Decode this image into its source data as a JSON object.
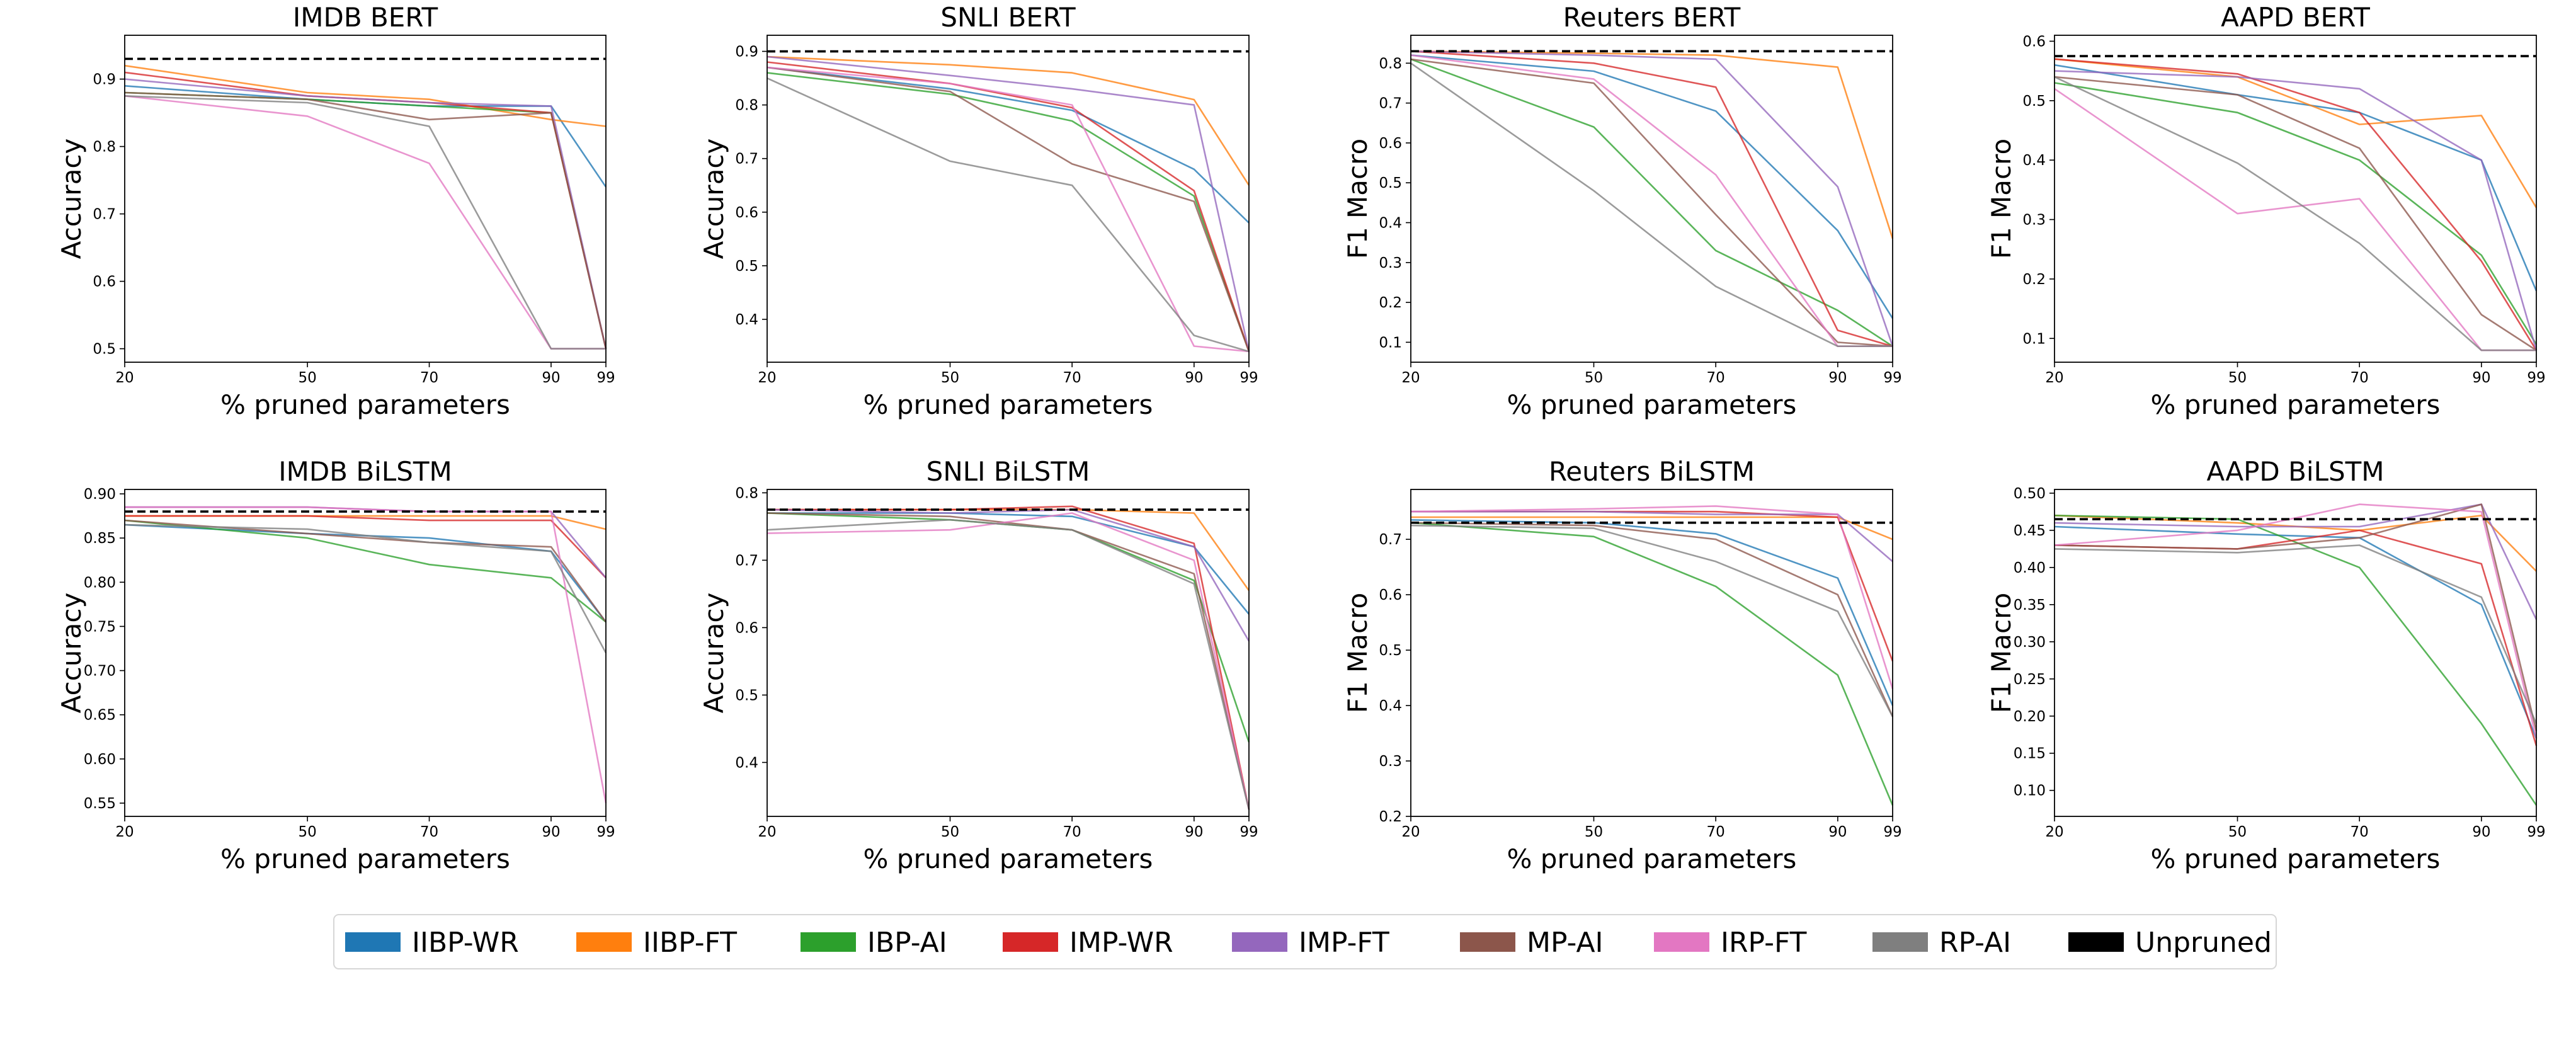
{
  "chart_data": {
    "type": "line",
    "x": [
      20,
      50,
      70,
      90,
      99
    ],
    "xlabel": "% pruned parameters",
    "legend_position": "bottom-center",
    "legend": [
      {
        "name": "IIBP-WR",
        "color": "#1f77b4"
      },
      {
        "name": "IIBP-FT",
        "color": "#ff7f0e"
      },
      {
        "name": "IBP-AI",
        "color": "#2ca02c"
      },
      {
        "name": "IMP-WR",
        "color": "#d62728"
      },
      {
        "name": "IMP-FT",
        "color": "#9467bd"
      },
      {
        "name": "MP-AI",
        "color": "#8c564b"
      },
      {
        "name": "IRP-FT",
        "color": "#e377c2"
      },
      {
        "name": "RP-AI",
        "color": "#7f7f7f"
      },
      {
        "name": "Unpruned",
        "color": "#000000"
      }
    ],
    "panels": [
      {
        "title": "IMDB BERT",
        "ylabel": "Accuracy",
        "ylim": [
          0.48,
          0.965
        ],
        "yticks": [
          "0.5",
          "0.6",
          "0.7",
          "0.8",
          "0.9"
        ],
        "ytick_values": [
          0.5,
          0.6,
          0.7,
          0.8,
          0.9
        ],
        "unpruned": 0.93,
        "series": [
          {
            "name": "IIBP-WR",
            "values": [
              0.89,
              0.87,
              0.86,
              0.86,
              0.74
            ]
          },
          {
            "name": "IIBP-FT",
            "values": [
              0.92,
              0.88,
              0.87,
              0.84,
              0.83
            ]
          },
          {
            "name": "IBP-AI",
            "values": [
              0.88,
              0.87,
              0.86,
              0.85,
              0.5
            ]
          },
          {
            "name": "IMP-WR",
            "values": [
              0.91,
              0.875,
              0.865,
              0.85,
              0.5
            ]
          },
          {
            "name": "IMP-FT",
            "values": [
              0.9,
              0.875,
              0.865,
              0.86,
              0.5
            ]
          },
          {
            "name": "MP-AI",
            "values": [
              0.88,
              0.87,
              0.84,
              0.85,
              0.5
            ]
          },
          {
            "name": "IRP-FT",
            "values": [
              0.875,
              0.845,
              0.775,
              0.5,
              0.5
            ]
          },
          {
            "name": "RP-AI",
            "values": [
              0.875,
              0.865,
              0.83,
              0.5,
              0.5
            ]
          }
        ]
      },
      {
        "title": "SNLI BERT",
        "ylabel": "Accuracy",
        "ylim": [
          0.32,
          0.93
        ],
        "yticks": [
          "0.4",
          "0.5",
          "0.6",
          "0.7",
          "0.8",
          "0.9"
        ],
        "ytick_values": [
          0.4,
          0.5,
          0.6,
          0.7,
          0.8,
          0.9
        ],
        "unpruned": 0.9,
        "series": [
          {
            "name": "IIBP-WR",
            "values": [
              0.87,
              0.83,
              0.79,
              0.68,
              0.58
            ]
          },
          {
            "name": "IIBP-FT",
            "values": [
              0.89,
              0.875,
              0.86,
              0.81,
              0.65
            ]
          },
          {
            "name": "IBP-AI",
            "values": [
              0.86,
              0.82,
              0.77,
              0.63,
              0.34
            ]
          },
          {
            "name": "IMP-WR",
            "values": [
              0.88,
              0.84,
              0.795,
              0.64,
              0.34
            ]
          },
          {
            "name": "IMP-FT",
            "values": [
              0.89,
              0.855,
              0.83,
              0.8,
              0.34
            ]
          },
          {
            "name": "MP-AI",
            "values": [
              0.87,
              0.825,
              0.69,
              0.62,
              0.34
            ]
          },
          {
            "name": "IRP-FT",
            "values": [
              0.87,
              0.84,
              0.8,
              0.35,
              0.34
            ]
          },
          {
            "name": "RP-AI",
            "values": [
              0.85,
              0.695,
              0.65,
              0.37,
              0.34
            ]
          }
        ]
      },
      {
        "title": "Reuters BERT",
        "ylabel": "F1 Macro",
        "ylim": [
          0.05,
          0.87
        ],
        "yticks": [
          "0.1",
          "0.2",
          "0.3",
          "0.4",
          "0.5",
          "0.6",
          "0.7",
          "0.8"
        ],
        "ytick_values": [
          0.1,
          0.2,
          0.3,
          0.4,
          0.5,
          0.6,
          0.7,
          0.8
        ],
        "unpruned": 0.83,
        "series": [
          {
            "name": "IIBP-WR",
            "values": [
              0.82,
              0.78,
              0.68,
              0.38,
              0.16
            ]
          },
          {
            "name": "IIBP-FT",
            "values": [
              0.83,
              0.825,
              0.82,
              0.79,
              0.36
            ]
          },
          {
            "name": "IBP-AI",
            "values": [
              0.81,
              0.64,
              0.33,
              0.18,
              0.09
            ]
          },
          {
            "name": "IMP-WR",
            "values": [
              0.83,
              0.8,
              0.74,
              0.13,
              0.09
            ]
          },
          {
            "name": "IMP-FT",
            "values": [
              0.83,
              0.82,
              0.81,
              0.49,
              0.09
            ]
          },
          {
            "name": "MP-AI",
            "values": [
              0.81,
              0.75,
              0.42,
              0.1,
              0.09
            ]
          },
          {
            "name": "IRP-FT",
            "values": [
              0.82,
              0.76,
              0.52,
              0.09,
              0.09
            ]
          },
          {
            "name": "RP-AI",
            "values": [
              0.8,
              0.48,
              0.24,
              0.09,
              0.09
            ]
          }
        ]
      },
      {
        "title": "AAPD BERT",
        "ylabel": "F1 Macro",
        "ylim": [
          0.06,
          0.61
        ],
        "yticks": [
          "0.1",
          "0.2",
          "0.3",
          "0.4",
          "0.5",
          "0.6"
        ],
        "ytick_values": [
          0.1,
          0.2,
          0.3,
          0.4,
          0.5,
          0.6
        ],
        "unpruned": 0.575,
        "series": [
          {
            "name": "IIBP-WR",
            "values": [
              0.56,
              0.51,
              0.48,
              0.4,
              0.18
            ]
          },
          {
            "name": "IIBP-FT",
            "values": [
              0.57,
              0.54,
              0.46,
              0.475,
              0.32
            ]
          },
          {
            "name": "IBP-AI",
            "values": [
              0.53,
              0.48,
              0.4,
              0.24,
              0.09
            ]
          },
          {
            "name": "IMP-WR",
            "values": [
              0.57,
              0.545,
              0.48,
              0.23,
              0.08
            ]
          },
          {
            "name": "IMP-FT",
            "values": [
              0.55,
              0.54,
              0.52,
              0.4,
              0.08
            ]
          },
          {
            "name": "MP-AI",
            "values": [
              0.54,
              0.51,
              0.42,
              0.14,
              0.08
            ]
          },
          {
            "name": "IRP-FT",
            "values": [
              0.52,
              0.31,
              0.335,
              0.08,
              0.08
            ]
          },
          {
            "name": "RP-AI",
            "values": [
              0.54,
              0.395,
              0.26,
              0.08,
              0.08
            ]
          }
        ]
      },
      {
        "title": "IMDB BiLSTM",
        "ylabel": "Accuracy",
        "ylim": [
          0.535,
          0.905
        ],
        "yticks": [
          "0.55",
          "0.60",
          "0.65",
          "0.70",
          "0.75",
          "0.80",
          "0.85",
          "0.90"
        ],
        "ytick_values": [
          0.55,
          0.6,
          0.65,
          0.7,
          0.75,
          0.8,
          0.85,
          0.9
        ],
        "unpruned": 0.88,
        "series": [
          {
            "name": "IIBP-WR",
            "values": [
              0.865,
              0.855,
              0.85,
              0.835,
              0.755
            ]
          },
          {
            "name": "IIBP-FT",
            "values": [
              0.875,
              0.875,
              0.875,
              0.875,
              0.86
            ]
          },
          {
            "name": "IBP-AI",
            "values": [
              0.87,
              0.85,
              0.82,
              0.805,
              0.755
            ]
          },
          {
            "name": "IMP-WR",
            "values": [
              0.875,
              0.875,
              0.87,
              0.87,
              0.805
            ]
          },
          {
            "name": "IMP-FT",
            "values": [
              0.885,
              0.885,
              0.88,
              0.88,
              0.805
            ]
          },
          {
            "name": "MP-AI",
            "values": [
              0.87,
              0.855,
              0.845,
              0.84,
              0.755
            ]
          },
          {
            "name": "IRP-FT",
            "values": [
              0.885,
              0.885,
              0.88,
              0.88,
              0.55
            ]
          },
          {
            "name": "RP-AI",
            "values": [
              0.865,
              0.86,
              0.845,
              0.835,
              0.72
            ]
          }
        ]
      },
      {
        "title": "SNLI BiLSTM",
        "ylabel": "Accuracy",
        "ylim": [
          0.32,
          0.805
        ],
        "yticks": [
          "0.4",
          "0.5",
          "0.6",
          "0.7",
          "0.8"
        ],
        "ytick_values": [
          0.4,
          0.5,
          0.6,
          0.7,
          0.8
        ],
        "unpruned": 0.775,
        "series": [
          {
            "name": "IIBP-WR",
            "values": [
              0.77,
              0.77,
              0.765,
              0.72,
              0.62
            ]
          },
          {
            "name": "IIBP-FT",
            "values": [
              0.775,
              0.775,
              0.775,
              0.77,
              0.655
            ]
          },
          {
            "name": "IBP-AI",
            "values": [
              0.77,
              0.76,
              0.745,
              0.67,
              0.43
            ]
          },
          {
            "name": "IMP-WR",
            "values": [
              0.775,
              0.775,
              0.78,
              0.725,
              0.33
            ]
          },
          {
            "name": "IMP-FT",
            "values": [
              0.775,
              0.77,
              0.775,
              0.72,
              0.58
            ]
          },
          {
            "name": "MP-AI",
            "values": [
              0.77,
              0.765,
              0.745,
              0.68,
              0.33
            ]
          },
          {
            "name": "IRP-FT",
            "values": [
              0.74,
              0.745,
              0.77,
              0.7,
              0.33
            ]
          },
          {
            "name": "RP-AI",
            "values": [
              0.745,
              0.76,
              0.745,
              0.665,
              0.33
            ]
          }
        ]
      },
      {
        "title": "Reuters BiLSTM",
        "ylabel": "F1 Macro",
        "ylim": [
          0.2,
          0.79
        ],
        "yticks": [
          "0.2",
          "0.3",
          "0.4",
          "0.5",
          "0.6",
          "0.7"
        ],
        "ytick_values": [
          0.2,
          0.3,
          0.4,
          0.5,
          0.6,
          0.7
        ],
        "unpruned": 0.73,
        "series": [
          {
            "name": "IIBP-WR",
            "values": [
              0.735,
              0.73,
              0.71,
              0.63,
              0.4
            ]
          },
          {
            "name": "IIBP-FT",
            "values": [
              0.74,
              0.74,
              0.74,
              0.74,
              0.7
            ]
          },
          {
            "name": "IBP-AI",
            "values": [
              0.73,
              0.705,
              0.615,
              0.455,
              0.22
            ]
          },
          {
            "name": "IMP-WR",
            "values": [
              0.75,
              0.75,
              0.75,
              0.74,
              0.48
            ]
          },
          {
            "name": "IMP-FT",
            "values": [
              0.75,
              0.75,
              0.745,
              0.745,
              0.66
            ]
          },
          {
            "name": "MP-AI",
            "values": [
              0.73,
              0.725,
              0.7,
              0.6,
              0.38
            ]
          },
          {
            "name": "IRP-FT",
            "values": [
              0.75,
              0.755,
              0.76,
              0.745,
              0.43
            ]
          },
          {
            "name": "RP-AI",
            "values": [
              0.725,
              0.72,
              0.66,
              0.57,
              0.38
            ]
          }
        ]
      },
      {
        "title": "AAPD BiLSTM",
        "ylabel": "F1 Macro",
        "ylim": [
          0.065,
          0.505
        ],
        "yticks": [
          "0.10",
          "0.15",
          "0.20",
          "0.25",
          "0.30",
          "0.35",
          "0.40",
          "0.45",
          "0.50"
        ],
        "ytick_values": [
          0.1,
          0.15,
          0.2,
          0.25,
          0.3,
          0.35,
          0.4,
          0.45,
          0.5
        ],
        "unpruned": 0.465,
        "series": [
          {
            "name": "IIBP-WR",
            "values": [
              0.455,
              0.445,
              0.44,
              0.35,
              0.17
            ]
          },
          {
            "name": "IIBP-FT",
            "values": [
              0.47,
              0.46,
              0.45,
              0.47,
              0.395
            ]
          },
          {
            "name": "IBP-AI",
            "values": [
              0.47,
              0.465,
              0.4,
              0.19,
              0.08
            ]
          },
          {
            "name": "IMP-WR",
            "values": [
              0.43,
              0.425,
              0.45,
              0.405,
              0.16
            ]
          },
          {
            "name": "IMP-FT",
            "values": [
              0.46,
              0.455,
              0.455,
              0.485,
              0.33
            ]
          },
          {
            "name": "MP-AI",
            "values": [
              0.43,
              0.425,
              0.44,
              0.485,
              0.18
            ]
          },
          {
            "name": "IRP-FT",
            "values": [
              0.43,
              0.45,
              0.485,
              0.475,
              0.17
            ]
          },
          {
            "name": "RP-AI",
            "values": [
              0.425,
              0.42,
              0.43,
              0.36,
              0.19
            ]
          }
        ]
      }
    ]
  }
}
